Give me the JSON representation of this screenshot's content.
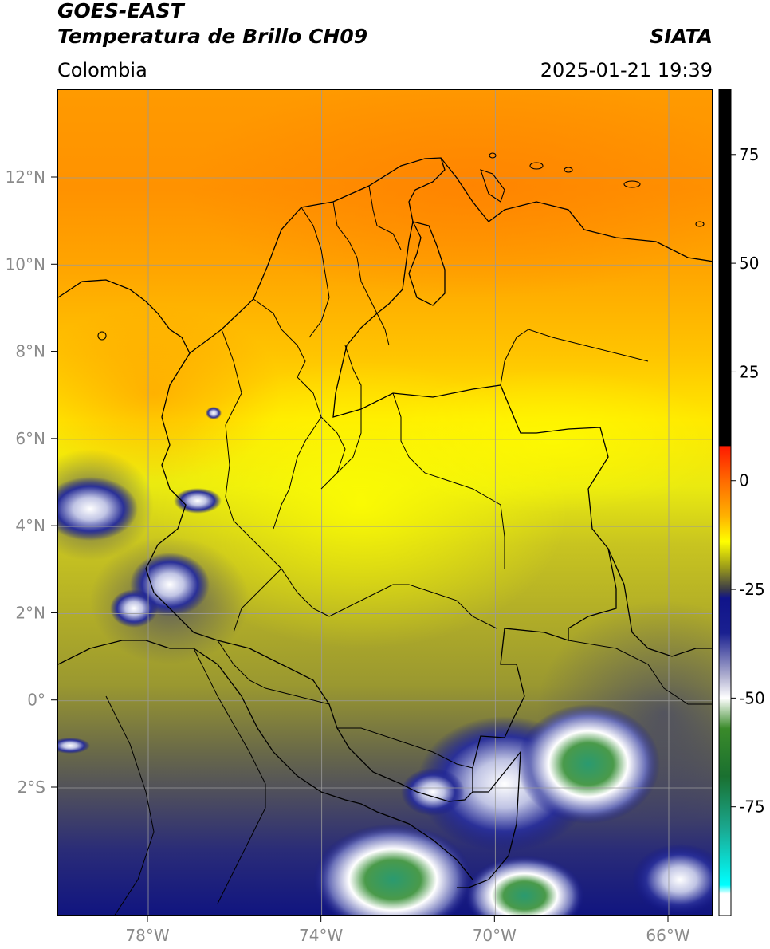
{
  "header": {
    "satellite": "GOES-EAST",
    "product": "Temperatura de Brillo CH09",
    "region": "Colombia",
    "agency": "SIATA",
    "datetime": "2025-01-21 19:39"
  },
  "map": {
    "lon_range": [
      -80,
      -65
    ],
    "lat_range": [
      -5,
      14
    ],
    "gridlines": true,
    "lat_ticks": [
      {
        "value": 12,
        "label": "12°N"
      },
      {
        "value": 10,
        "label": "10°N"
      },
      {
        "value": 8,
        "label": "8°N"
      },
      {
        "value": 6,
        "label": "6°N"
      },
      {
        "value": 4,
        "label": "4°N"
      },
      {
        "value": 2,
        "label": "2°N"
      },
      {
        "value": 0,
        "label": "0°"
      },
      {
        "value": -2,
        "label": "2°S"
      }
    ],
    "lon_ticks": [
      {
        "value": -78,
        "label": "78°W"
      },
      {
        "value": -74,
        "label": "74°W"
      },
      {
        "value": -70,
        "label": "70°W"
      },
      {
        "value": -66,
        "label": "66°W"
      }
    ]
  },
  "colorbar": {
    "range": [
      -100,
      90
    ],
    "tick_values": [
      75,
      50,
      25,
      0,
      -25,
      -50,
      -75
    ],
    "tick_labels": [
      "75",
      "50",
      "25",
      "0",
      "-25",
      "-50",
      "-75"
    ],
    "stops": [
      {
        "value": 90,
        "color": "#000000"
      },
      {
        "value": 8,
        "color": "#000000"
      },
      {
        "value": 7.9,
        "color": "#ff1a00"
      },
      {
        "value": 0,
        "color": "#ff6a00"
      },
      {
        "value": -8,
        "color": "#ffb000"
      },
      {
        "value": -14,
        "color": "#ffff00"
      },
      {
        "value": -20,
        "color": "#9a9a1a"
      },
      {
        "value": -25,
        "color": "#3a3a48"
      },
      {
        "value": -27,
        "color": "#10148a"
      },
      {
        "value": -35,
        "color": "#1a2090"
      },
      {
        "value": -45,
        "color": "#b0b0d0"
      },
      {
        "value": -50,
        "color": "#ffffff"
      },
      {
        "value": -57,
        "color": "#3a8a2a"
      },
      {
        "value": -68,
        "color": "#1a7030"
      },
      {
        "value": -80,
        "color": "#1aa890"
      },
      {
        "value": -93,
        "color": "#00ffff"
      },
      {
        "value": -95,
        "color": "#ffffff"
      },
      {
        "value": -100,
        "color": "#ffffff"
      }
    ]
  },
  "colors": {
    "gridline": "#9a9a9a",
    "coastline": "#000000",
    "tick_text": "#8a8a8a"
  }
}
